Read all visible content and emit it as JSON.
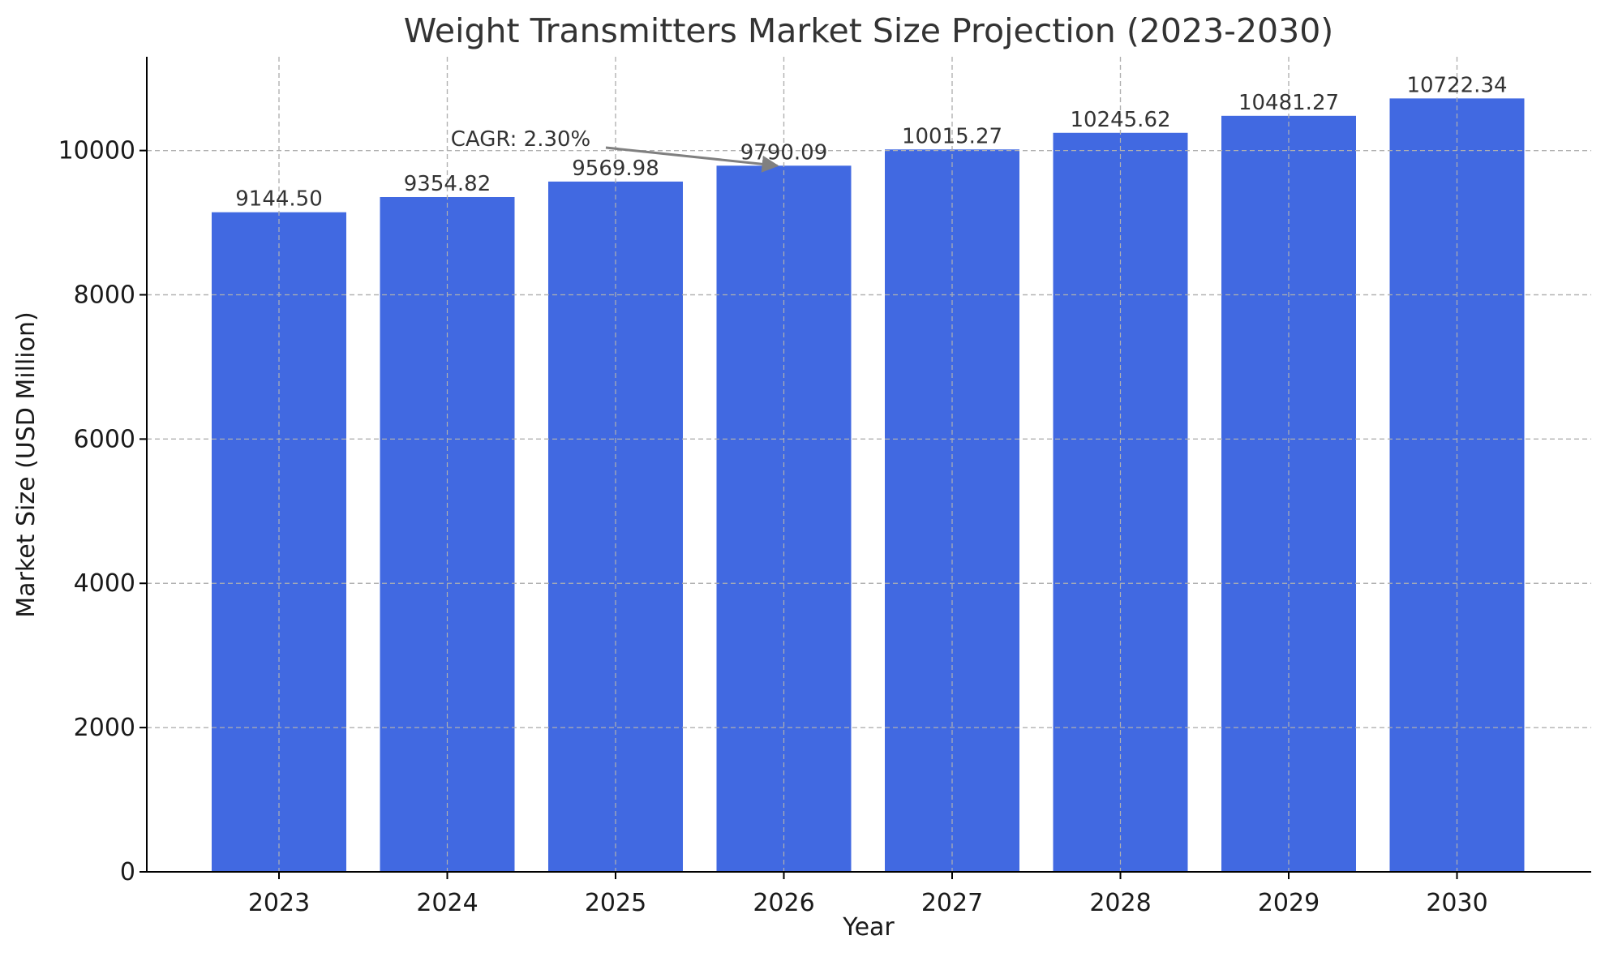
{
  "chart_data": {
    "type": "bar",
    "title": "Weight Transmitters Market Size Projection (2023-2030)",
    "xlabel": "Year",
    "ylabel": "Market Size (USD Million)",
    "categories": [
      "2023",
      "2024",
      "2025",
      "2026",
      "2027",
      "2028",
      "2029",
      "2030"
    ],
    "values": [
      9144.5,
      9354.82,
      9569.98,
      9790.09,
      10015.27,
      10245.62,
      10481.27,
      10722.34
    ],
    "value_labels": [
      "9144.50",
      "9354.82",
      "9569.98",
      "9790.09",
      "10015.27",
      "10245.62",
      "10481.27",
      "10722.34"
    ],
    "ylim": [
      0,
      11300
    ],
    "yticks": [
      0,
      2000,
      4000,
      6000,
      8000,
      10000
    ],
    "ytick_labels": [
      "0",
      "2000",
      "4000",
      "6000",
      "8000",
      "10000"
    ],
    "grid": true,
    "bar_color": "#4169e1",
    "annotation": {
      "text": "CAGR: 2.30%",
      "arrow_color": "#808080",
      "target_category": "2026",
      "target_value": 9790.09
    }
  }
}
